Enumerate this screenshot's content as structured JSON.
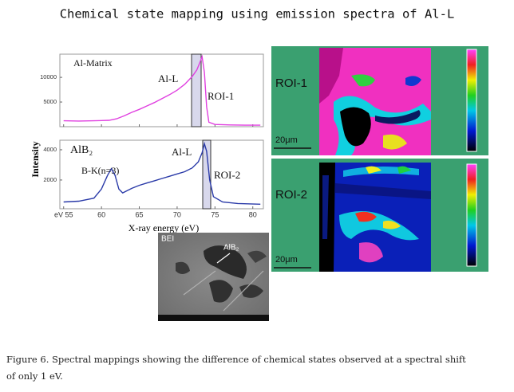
{
  "title": "Chemical state mapping using emission spectra of Al-L",
  "spectra": {
    "x_label": "X-ray energy (eV)",
    "y_label": "Intensity",
    "xlim": [
      54.5,
      81.4
    ],
    "xticks": [
      {
        "value": 55,
        "label": "eV 55"
      },
      60,
      65,
      70,
      75,
      80
    ],
    "panels": [
      {
        "labels": [
          "Al-Matrix",
          "Al-L",
          "ROI-1"
        ],
        "color": "#e040e0",
        "ylim": [
          0,
          14700
        ],
        "yticks": [
          5000,
          10000
        ],
        "x": [
          55,
          57,
          59,
          61,
          62,
          63,
          64,
          65,
          66,
          67,
          68,
          69,
          70,
          71,
          72,
          72.6,
          73,
          73.3,
          73.6,
          73.9,
          74.2,
          75,
          77,
          79,
          81
        ],
        "values": [
          1200,
          1150,
          1200,
          1300,
          1600,
          2200,
          2900,
          3500,
          4200,
          4900,
          5700,
          6500,
          7400,
          8600,
          10200,
          11500,
          13000,
          14200,
          11000,
          4000,
          900,
          450,
          350,
          300,
          300
        ]
      },
      {
        "labels": [
          "AlB₂",
          "B-K(n=3)",
          "Al-L",
          "ROI-2"
        ],
        "color": "#2a3aa8",
        "ylim": [
          100,
          4630
        ],
        "yticks": [
          2000,
          4000
        ],
        "x": [
          55,
          57,
          59,
          60,
          60.8,
          61.3,
          61.8,
          62.3,
          62.8,
          64,
          65,
          66,
          67,
          68,
          69,
          70,
          71,
          72,
          72.8,
          73.3,
          73.6,
          73.9,
          74.3,
          74.8,
          76,
          78,
          81
        ],
        "values": [
          550,
          600,
          800,
          1400,
          2300,
          2750,
          2300,
          1400,
          1150,
          1450,
          1650,
          1800,
          1950,
          2100,
          2250,
          2400,
          2550,
          2800,
          3200,
          3800,
          4400,
          3900,
          2000,
          900,
          550,
          450,
          400
        ]
      }
    ]
  },
  "maps": [
    {
      "label": "ROI-1",
      "scale": "20μm"
    },
    {
      "label": "ROI-2",
      "scale": "20μm"
    }
  ],
  "bei": {
    "label": "BEI",
    "phase": "AlB₂"
  },
  "caption": [
    "Figure 6. Spectral mappings showing the difference of chemical states observed at a spectral shift",
    "of only 1 eV."
  ]
}
